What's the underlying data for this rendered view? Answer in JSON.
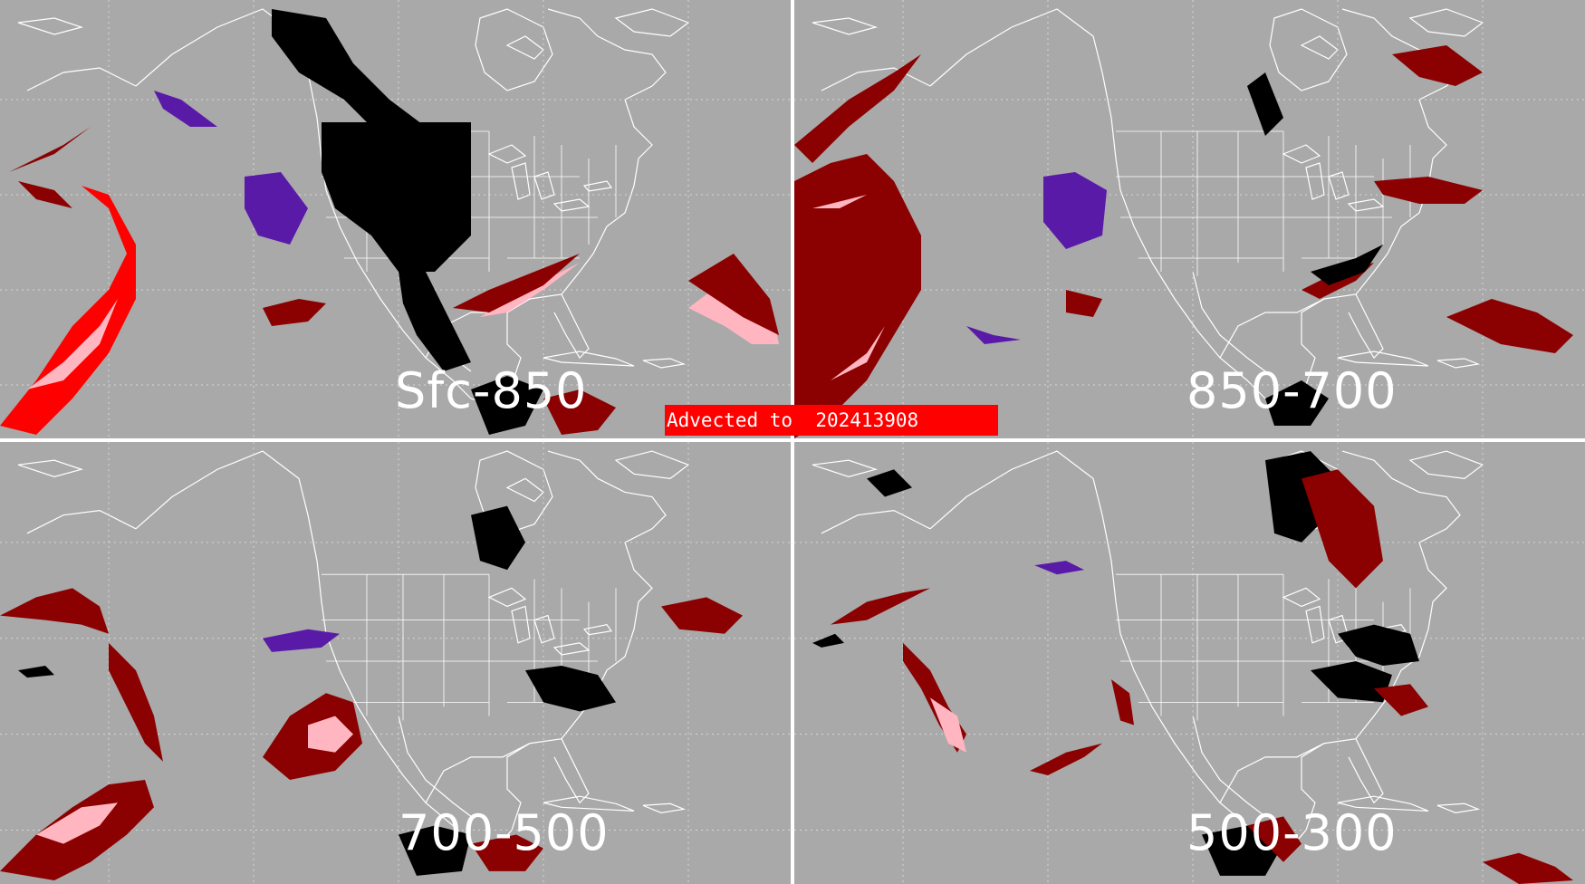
{
  "banner": {
    "text": "Advected to  202413908"
  },
  "panels": [
    {
      "label": "Sfc-850"
    },
    {
      "label": "850-700"
    },
    {
      "label": "700-500"
    },
    {
      "label": "500-300"
    }
  ],
  "colors": {
    "background": "#a9a9a9",
    "map_lines": "#ffffff",
    "black_category": "#000000",
    "dark_red_category": "#8b0000",
    "red_category": "#ff0000",
    "pink_category": "#ffb6c1",
    "purple_category": "#5a1aa8",
    "banner": "#ff0000"
  }
}
